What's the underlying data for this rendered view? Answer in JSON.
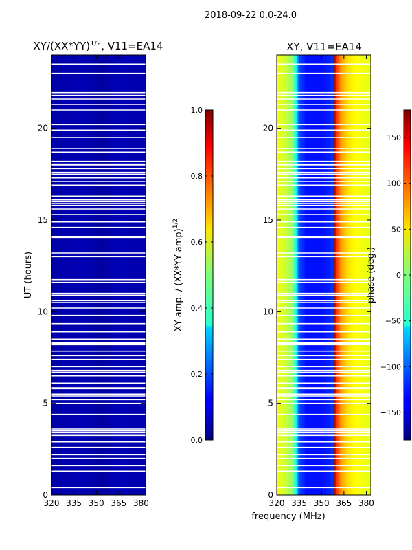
{
  "suptitle": "2018-09-22 0.0-24.0",
  "chart_data": [
    {
      "type": "heatmap",
      "title_main": "XY/(XX*YY)",
      "title_exp": "1/2",
      "title_suffix": ", V11=EA14",
      "xlabel": "",
      "ylabel": "UT (hours)",
      "xlim": [
        320,
        383
      ],
      "ylim": [
        0,
        24
      ],
      "xticks": [
        320,
        335,
        350,
        365,
        380
      ],
      "yticks": [
        0,
        5,
        10,
        15,
        20
      ],
      "xtick_labels": [
        "320",
        "335",
        "350",
        "365",
        "380"
      ],
      "ytick_labels": [
        "0",
        "5",
        "10",
        "15",
        "20"
      ],
      "description_value": "normalized XY amplitude ~0.05-0.1 everywhere",
      "colorbar": {
        "label_main": "XY amp. / (XX*YY amp)",
        "label_exp": "1/2",
        "min": 0.0,
        "max": 1.0,
        "ticks": [
          0.0,
          0.2,
          0.4,
          0.6,
          0.8,
          1.0
        ],
        "tick_labels": [
          "0.0",
          "0.2",
          "0.4",
          "0.6",
          "0.8",
          "1.0"
        ]
      }
    },
    {
      "type": "heatmap",
      "title": "XY, V11=EA14",
      "xlabel": "frequency (MHz)",
      "ylabel": "",
      "xlim": [
        320,
        383
      ],
      "ylim": [
        0,
        24
      ],
      "xticks": [
        320,
        335,
        350,
        365,
        380
      ],
      "yticks": [
        0,
        5,
        10,
        15,
        20
      ],
      "xtick_labels": [
        "320",
        "335",
        "350",
        "365",
        "380"
      ],
      "ytick_labels": [
        "0",
        "5",
        "10",
        "15",
        "20"
      ],
      "phase_profile": {
        "freq_mhz": [
          320,
          325,
          330,
          333,
          335,
          340,
          345,
          350,
          355,
          357.5,
          358.5,
          360,
          363,
          368,
          373,
          378,
          383
        ],
        "phase_deg": [
          40,
          30,
          10,
          -40,
          -110,
          -130,
          -130,
          -130,
          -125,
          -115,
          175,
          120,
          80,
          55,
          45,
          40,
          35
        ]
      },
      "colorbar": {
        "label": "phase (deg.)",
        "min": -180,
        "max": 180,
        "ticks": [
          -150,
          -100,
          -50,
          0,
          50,
          100,
          150
        ],
        "tick_labels": [
          "−150",
          "−100",
          "−50",
          "0",
          "50",
          "100",
          "150"
        ]
      }
    }
  ],
  "flagged_ut_hours": [
    0.4,
    1.3,
    1.6,
    2.0,
    2.2,
    2.6,
    2.9,
    3.25,
    3.4,
    3.5,
    3.6,
    4.4,
    5.0,
    5.2,
    5.4,
    5.5,
    5.8,
    5.85,
    6.1,
    6.5,
    6.7,
    6.8,
    7.0,
    7.4,
    7.6,
    7.85,
    8.2,
    8.25,
    8.3,
    8.5,
    8.9,
    9.35,
    9.8,
    10.2,
    10.5,
    10.6,
    10.9,
    11.0,
    11.6,
    11.75,
    13.0,
    13.2,
    14.05,
    14.1,
    14.6,
    14.9,
    15.3,
    15.6,
    15.8,
    15.9,
    16.0,
    16.1,
    16.3,
    16.9,
    17.1,
    17.3,
    17.5,
    17.6,
    17.8,
    18.0,
    18.05,
    18.2,
    18.7,
    18.9,
    19.5,
    19.9,
    20.2,
    21.0,
    21.3,
    21.6,
    21.8,
    21.95,
    23.0,
    23.5
  ]
}
